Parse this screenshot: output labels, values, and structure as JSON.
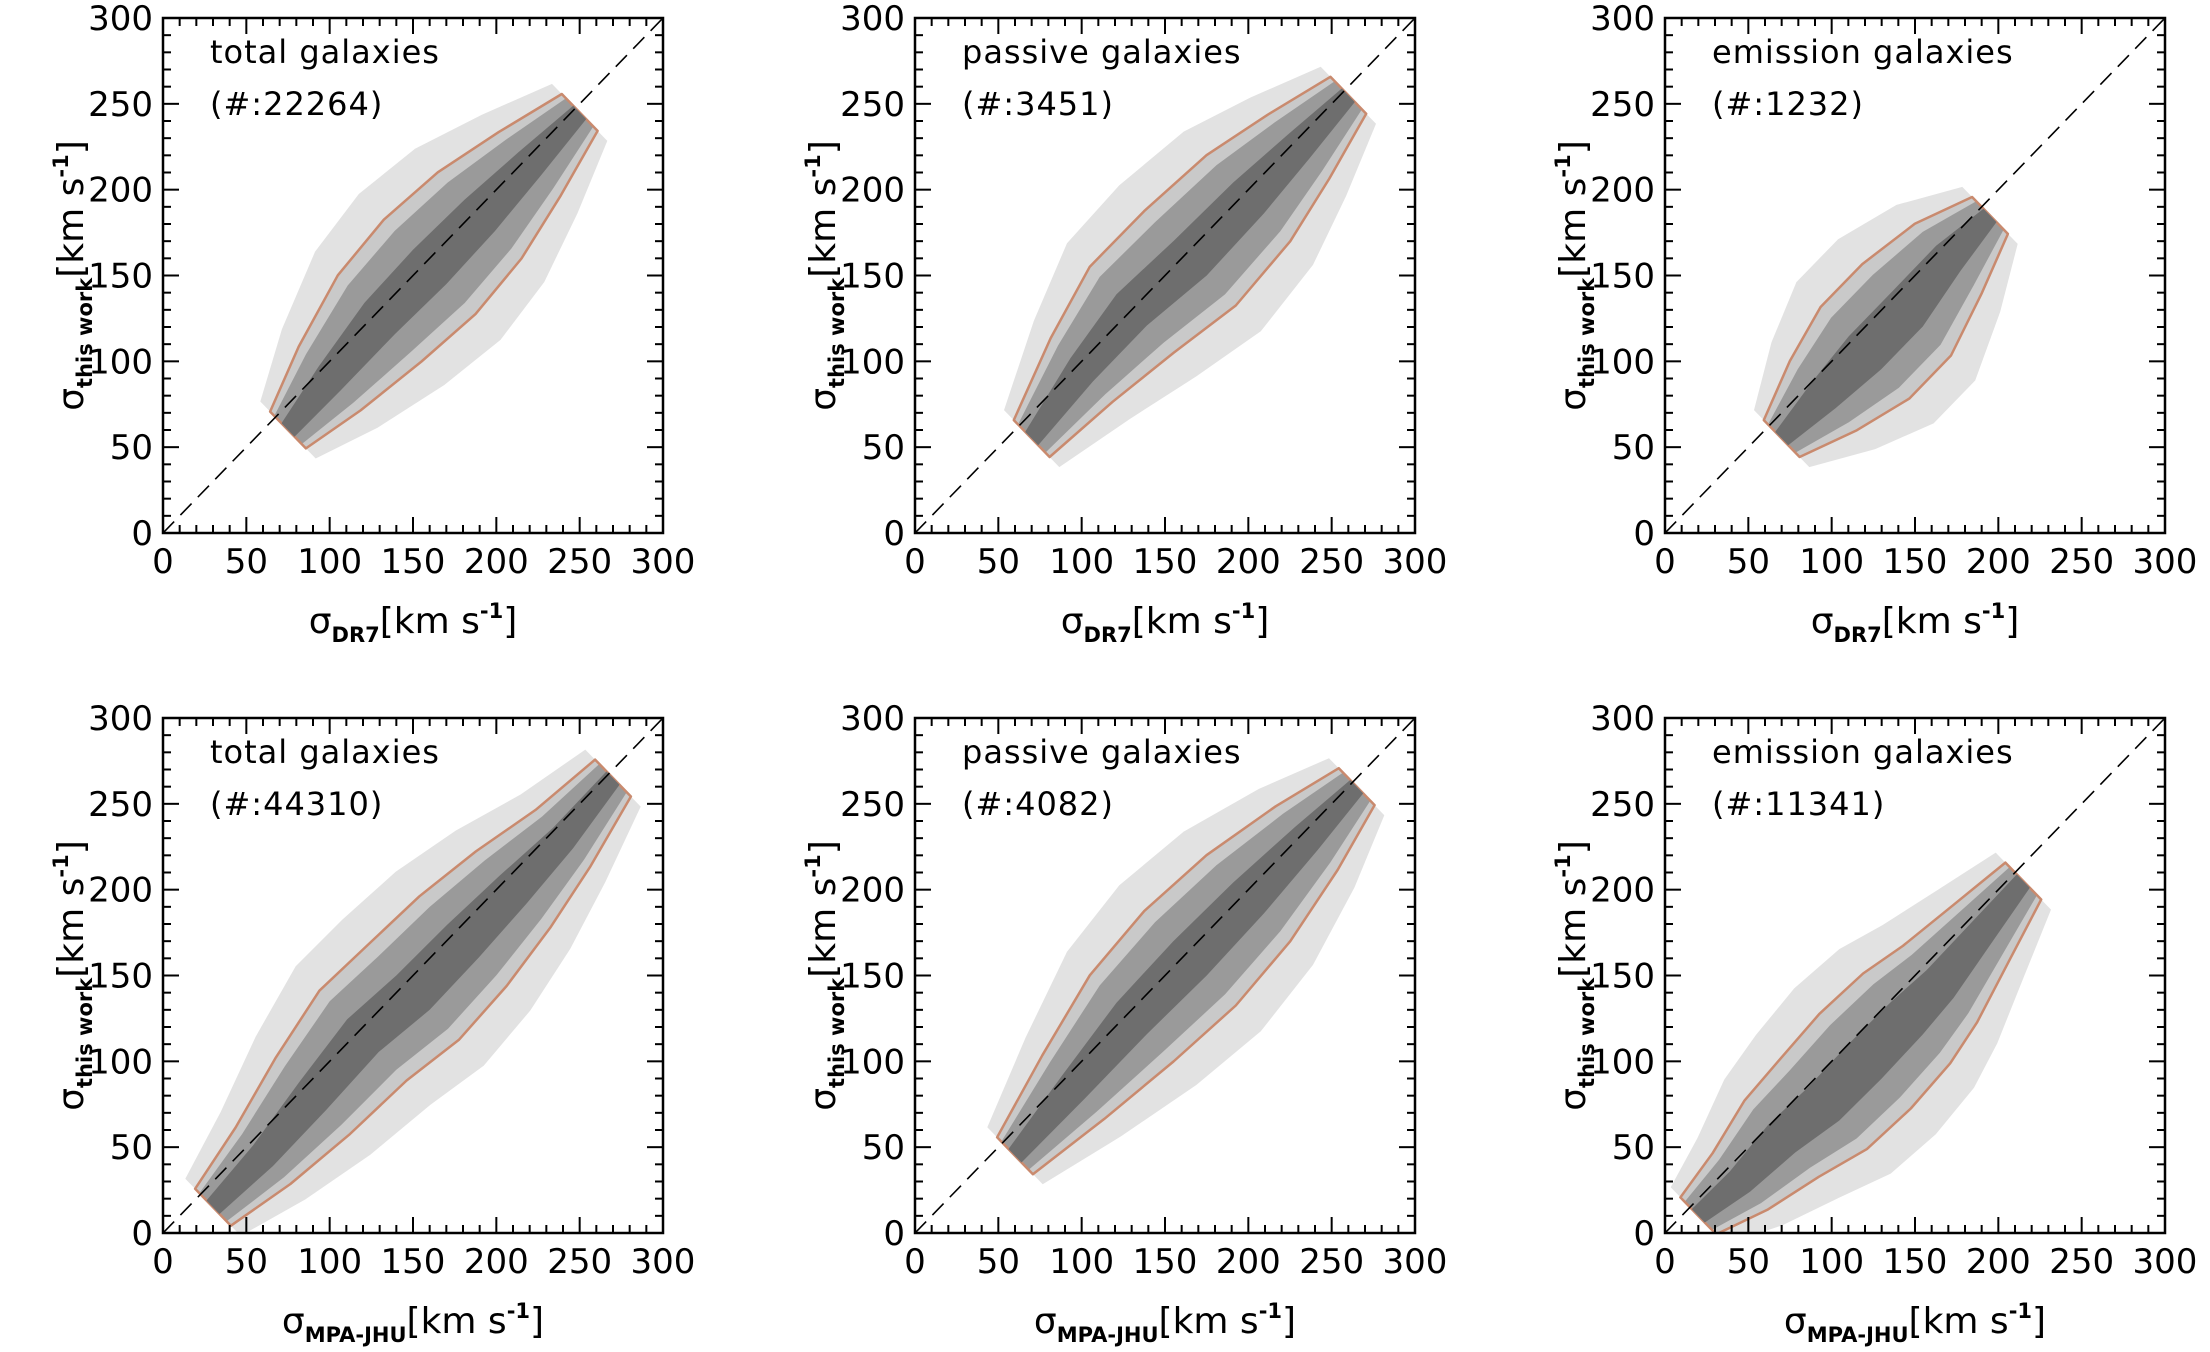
{
  "chart_data": [
    {
      "type": "contour",
      "title": "total galaxies",
      "count_label": "(#:22264)",
      "xlabel": {
        "symbol": "σ",
        "sub": "DR7",
        "unit": "[km s",
        "exp": "-1",
        "close": "]"
      },
      "ylabel": {
        "symbol": "σ",
        "sub": "this work",
        "unit": "[km s",
        "exp": "-1",
        "close": "]"
      },
      "xlim": [
        0,
        300
      ],
      "ylim": [
        0,
        300
      ],
      "xticks": [
        0,
        50,
        100,
        150,
        200,
        250,
        300
      ],
      "yticks": [
        0,
        50,
        100,
        150,
        200,
        250,
        300
      ],
      "one_to_one_line": true,
      "ridge": [
        [
          75,
          60
        ],
        [
          100,
          90
        ],
        [
          130,
          125
        ],
        [
          160,
          155
        ],
        [
          190,
          185
        ],
        [
          220,
          215
        ],
        [
          250,
          245
        ]
      ],
      "contour_color": "#c98a6e"
    },
    {
      "type": "contour",
      "title": "passive galaxies",
      "count_label": "(#:3451)",
      "xlabel": {
        "symbol": "σ",
        "sub": "DR7",
        "unit": "[km s",
        "exp": "-1",
        "close": "]"
      },
      "ylabel": {
        "symbol": "σ",
        "sub": "this work",
        "unit": "[km s",
        "exp": "-1",
        "close": "]"
      },
      "xlim": [
        0,
        300
      ],
      "ylim": [
        0,
        300
      ],
      "xticks": [
        0,
        50,
        100,
        150,
        200,
        250,
        300
      ],
      "yticks": [
        0,
        50,
        100,
        150,
        200,
        250,
        300
      ],
      "one_to_one_line": true,
      "ridge": [
        [
          70,
          55
        ],
        [
          100,
          95
        ],
        [
          130,
          130
        ],
        [
          165,
          160
        ],
        [
          200,
          195
        ],
        [
          230,
          225
        ],
        [
          260,
          255
        ]
      ],
      "contour_color": "#c98a6e"
    },
    {
      "type": "contour",
      "title": "emission galaxies",
      "count_label": "(#:1232)",
      "xlabel": {
        "symbol": "σ",
        "sub": "DR7",
        "unit": "[km s",
        "exp": "-1",
        "close": "]"
      },
      "ylabel": {
        "symbol": "σ",
        "sub": "this work",
        "unit": "[km s",
        "exp": "-1",
        "close": "]"
      },
      "xlim": [
        0,
        300
      ],
      "ylim": [
        0,
        300
      ],
      "xticks": [
        0,
        50,
        100,
        150,
        200,
        250,
        300
      ],
      "yticks": [
        0,
        50,
        100,
        150,
        200,
        250,
        300
      ],
      "one_to_one_line": true,
      "ridge": [
        [
          70,
          55
        ],
        [
          95,
          80
        ],
        [
          120,
          105
        ],
        [
          145,
          130
        ],
        [
          170,
          160
        ],
        [
          195,
          185
        ]
      ],
      "contour_color": "#c98a6e"
    },
    {
      "type": "contour",
      "title": "total galaxies",
      "count_label": "(#:44310)",
      "xlabel": {
        "symbol": "σ",
        "sub": "MPA-JHU",
        "unit": "[km s",
        "exp": "-1",
        "close": "]"
      },
      "ylabel": {
        "symbol": "σ",
        "sub": "this work",
        "unit": "[km s",
        "exp": "-1",
        "close": "]"
      },
      "xlim": [
        0,
        300
      ],
      "ylim": [
        0,
        300
      ],
      "xticks": [
        0,
        50,
        100,
        150,
        200,
        250,
        300
      ],
      "yticks": [
        0,
        50,
        100,
        150,
        200,
        250,
        300
      ],
      "one_to_one_line": true,
      "ridge": [
        [
          30,
          15
        ],
        [
          60,
          45
        ],
        [
          90,
          80
        ],
        [
          120,
          115
        ],
        [
          150,
          140
        ],
        [
          180,
          170
        ],
        [
          210,
          200
        ],
        [
          240,
          230
        ],
        [
          270,
          265
        ]
      ],
      "contour_color": "#c98a6e"
    },
    {
      "type": "contour",
      "title": "passive galaxies",
      "count_label": "(#:4082)",
      "xlabel": {
        "symbol": "σ",
        "sub": "MPA-JHU",
        "unit": "[km s",
        "exp": "-1",
        "close": "]"
      },
      "ylabel": {
        "symbol": "σ",
        "sub": "this work",
        "unit": "[km s",
        "exp": "-1",
        "close": "]"
      },
      "xlim": [
        0,
        300
      ],
      "ylim": [
        0,
        300
      ],
      "xticks": [
        0,
        50,
        100,
        150,
        200,
        250,
        300
      ],
      "yticks": [
        0,
        50,
        100,
        150,
        200,
        250,
        300
      ],
      "one_to_one_line": true,
      "ridge": [
        [
          60,
          45
        ],
        [
          95,
          85
        ],
        [
          130,
          125
        ],
        [
          165,
          160
        ],
        [
          200,
          195
        ],
        [
          235,
          230
        ],
        [
          265,
          260
        ]
      ],
      "contour_color": "#c98a6e"
    },
    {
      "type": "contour",
      "title": "emission galaxies",
      "count_label": "(#:11341)",
      "xlabel": {
        "symbol": "σ",
        "sub": "MPA-JHU",
        "unit": "[km s",
        "exp": "-1",
        "close": "]"
      },
      "ylabel": {
        "symbol": "σ",
        "sub": "this work",
        "unit": "[km s",
        "exp": "-1",
        "close": "]"
      },
      "xlim": [
        0,
        300
      ],
      "ylim": [
        0,
        300
      ],
      "xticks": [
        0,
        50,
        100,
        150,
        200,
        250,
        300
      ],
      "yticks": [
        0,
        50,
        100,
        150,
        200,
        250,
        300
      ],
      "one_to_one_line": true,
      "ridge": [
        [
          20,
          10
        ],
        [
          45,
          30
        ],
        [
          70,
          55
        ],
        [
          95,
          75
        ],
        [
          120,
          100
        ],
        [
          145,
          125
        ],
        [
          165,
          145
        ],
        [
          190,
          175
        ],
        [
          215,
          205
        ]
      ],
      "contour_color": "#c98a6e"
    }
  ]
}
